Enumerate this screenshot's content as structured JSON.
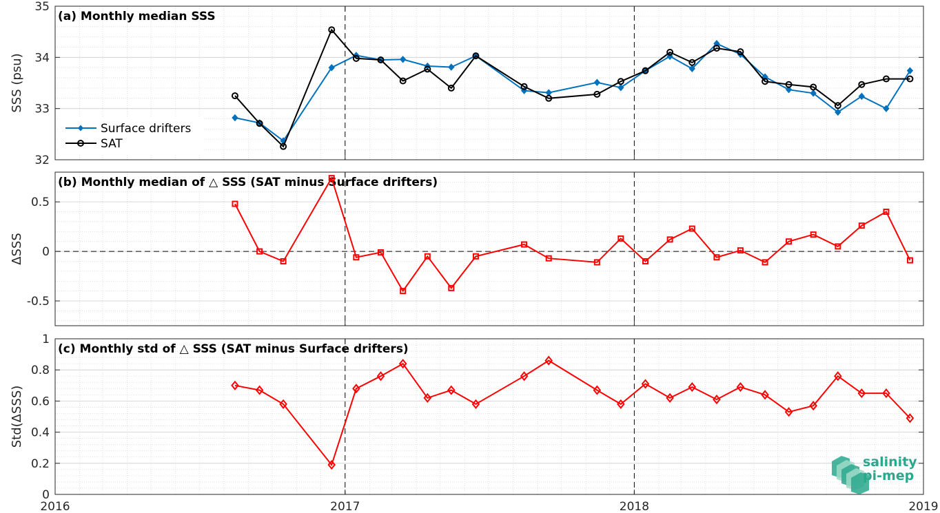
{
  "x_tick_labels": [
    "2016",
    "2017",
    "2018",
    "2019"
  ],
  "logo": {
    "line1": "salinity",
    "line2": "pi-mep"
  },
  "colors": {
    "drifters": "#0072BD",
    "sat": "#000000",
    "delta": "#FF0000",
    "logo": "#2aa88e"
  },
  "chart_data": [
    {
      "type": "line",
      "title": "(a) Monthly median SSS",
      "ylabel": "SSS (psu)",
      "xlabel": "",
      "ylim": [
        32,
        35
      ],
      "yticks": [
        32,
        33,
        34,
        35
      ],
      "xlim": [
        "2016-01-01",
        "2019-01-01"
      ],
      "grid": true,
      "legend": "left",
      "x": [
        "2016-08-15",
        "2016-09-15",
        "2016-10-15",
        "2016-12-15",
        "2017-01-15",
        "2017-02-15",
        "2017-03-15",
        "2017-04-15",
        "2017-05-15",
        "2017-06-15",
        "2017-08-15",
        "2017-09-15",
        "2017-11-15",
        "2017-12-15",
        "2018-01-15",
        "2018-02-15",
        "2018-03-15",
        "2018-04-15",
        "2018-05-15",
        "2018-06-15",
        "2018-07-15",
        "2018-08-15",
        "2018-09-15",
        "2018-10-15",
        "2018-11-15",
        "2018-12-15"
      ],
      "series": [
        {
          "name": "Surface drifters",
          "marker": "filled-diamond",
          "values": [
            32.82,
            32.72,
            32.37,
            33.8,
            34.04,
            33.95,
            33.96,
            33.83,
            33.81,
            34.03,
            33.35,
            33.31,
            33.51,
            33.41,
            33.74,
            34.02,
            33.78,
            34.27,
            34.06,
            33.62,
            33.37,
            33.3,
            32.93,
            33.24,
            33.0,
            33.74
          ]
        },
        {
          "name": "SAT",
          "marker": "open-circle",
          "values": [
            33.25,
            32.71,
            32.26,
            34.54,
            33.98,
            33.95,
            33.54,
            33.77,
            33.4,
            34.03,
            33.43,
            33.2,
            33.28,
            33.53,
            33.74,
            34.1,
            33.9,
            34.18,
            34.11,
            33.53,
            33.47,
            33.42,
            33.06,
            33.47,
            33.58,
            33.58
          ]
        }
      ]
    },
    {
      "type": "line",
      "title": "(b) Monthly median of △ SSS (SAT minus Surface drifters)",
      "ylabel": "ΔSSS",
      "xlabel": "",
      "ylim": [
        -0.75,
        0.8
      ],
      "yticks": [
        -0.5,
        0,
        0.5
      ],
      "ytick_labels": [
        "-0.5",
        "0",
        "0.5"
      ],
      "xlim": [
        "2016-01-01",
        "2019-01-01"
      ],
      "grid": true,
      "reference_line": 0,
      "x": [
        "2016-08-15",
        "2016-09-15",
        "2016-10-15",
        "2016-12-15",
        "2017-01-15",
        "2017-02-15",
        "2017-03-15",
        "2017-04-15",
        "2017-05-15",
        "2017-06-15",
        "2017-08-15",
        "2017-09-15",
        "2017-11-15",
        "2017-12-15",
        "2018-01-15",
        "2018-02-15",
        "2018-03-15",
        "2018-04-15",
        "2018-05-15",
        "2018-06-15",
        "2018-07-15",
        "2018-08-15",
        "2018-09-15",
        "2018-10-15",
        "2018-11-15",
        "2018-12-15"
      ],
      "series": [
        {
          "name": "",
          "marker": "open-square",
          "values": [
            0.48,
            0.0,
            -0.1,
            0.74,
            -0.06,
            -0.01,
            -0.4,
            -0.05,
            -0.37,
            -0.05,
            0.07,
            -0.07,
            -0.11,
            0.13,
            -0.1,
            0.12,
            0.23,
            -0.06,
            0.01,
            -0.11,
            0.1,
            0.17,
            0.05,
            0.26,
            0.4,
            -0.09
          ]
        }
      ]
    },
    {
      "type": "line",
      "title": "(c) Monthly std of △ SSS (SAT minus Surface drifters)",
      "ylabel": "Std(ΔSSS)",
      "xlabel": "",
      "ylim": [
        0,
        1
      ],
      "yticks": [
        0,
        0.2,
        0.4,
        0.6,
        0.8,
        1
      ],
      "ytick_labels": [
        "0",
        "0.2",
        "0.4",
        "0.6",
        "0.8",
        "1"
      ],
      "xlim": [
        "2016-01-01",
        "2019-01-01"
      ],
      "grid": true,
      "x": [
        "2016-08-15",
        "2016-09-15",
        "2016-10-15",
        "2016-12-15",
        "2017-01-15",
        "2017-02-15",
        "2017-03-15",
        "2017-04-15",
        "2017-05-15",
        "2017-06-15",
        "2017-08-15",
        "2017-09-15",
        "2017-11-15",
        "2017-12-15",
        "2018-01-15",
        "2018-02-15",
        "2018-03-15",
        "2018-04-15",
        "2018-05-15",
        "2018-06-15",
        "2018-07-15",
        "2018-08-15",
        "2018-09-15",
        "2018-10-15",
        "2018-11-15",
        "2018-12-15"
      ],
      "series": [
        {
          "name": "",
          "marker": "open-diamond",
          "values": [
            0.7,
            0.67,
            0.58,
            0.19,
            0.68,
            0.76,
            0.84,
            0.62,
            0.67,
            0.58,
            0.76,
            0.86,
            0.67,
            0.58,
            0.71,
            0.62,
            0.69,
            0.61,
            0.69,
            0.64,
            0.53,
            0.57,
            0.76,
            0.65,
            0.65,
            0.49
          ]
        }
      ]
    }
  ]
}
